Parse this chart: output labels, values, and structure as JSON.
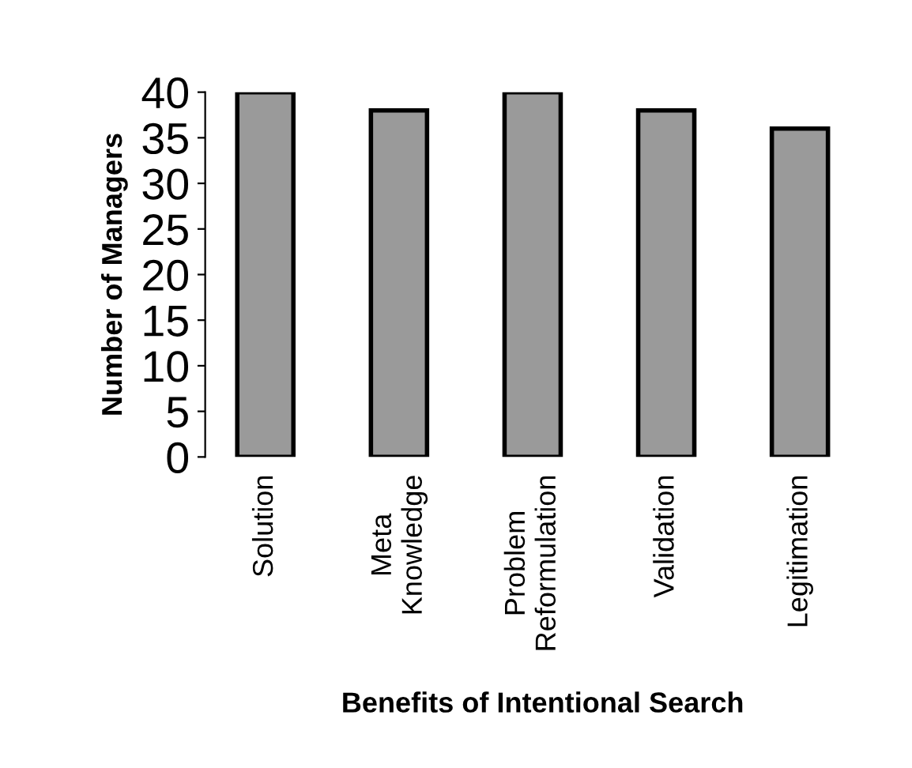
{
  "chart_data": {
    "type": "bar",
    "xlabel": "Benefits of Intentional Search",
    "ylabel": "Number of Managers",
    "categories": [
      "Solution",
      "Meta\nKnowledge",
      "Problem\nReformulation",
      "Validation",
      "Legitimation"
    ],
    "values": [
      40,
      38,
      40,
      38,
      36
    ],
    "color": "#9a9a9a",
    "ylim": [
      0,
      40
    ],
    "yticks": [
      0,
      5,
      10,
      15,
      20,
      25,
      30,
      35,
      40
    ],
    "grid": false
  }
}
